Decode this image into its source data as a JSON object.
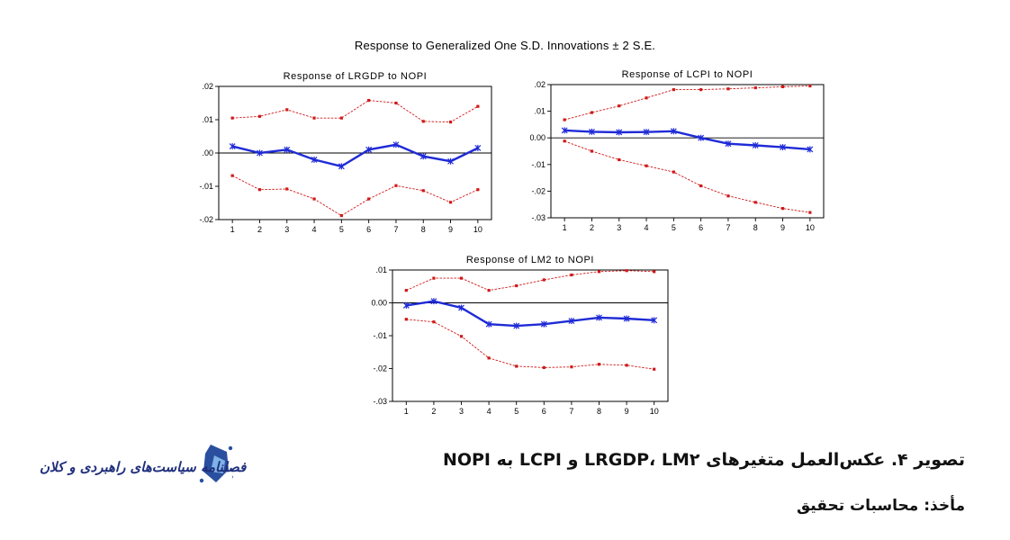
{
  "figure": {
    "title": "Response to Generalized One S.D. Innovations ± 2 S.E.",
    "caption": "تصویر ۴. عکس‌العمل متغیرهای LRGDP، LM۲ و LCPI به NOPI",
    "source": "مأخذ: محاسبات تحقیق"
  },
  "logo": {
    "text": "فصلنامه سیاست‌های راهبردی و کلان"
  },
  "colors": {
    "response": "#1f2bd6",
    "band": "#d01818",
    "axis": "#000000"
  },
  "chart_data": [
    {
      "type": "line",
      "title": "Response of LRGDP to NOPI",
      "x": [
        1,
        2,
        3,
        4,
        5,
        6,
        7,
        8,
        9,
        10
      ],
      "ylim": [
        -0.02,
        0.02
      ],
      "yticks": [
        ".02",
        ".01",
        ".00",
        "-.01",
        "-.02"
      ],
      "ytick_values": [
        0.02,
        0.01,
        0.0,
        -0.01,
        -0.02
      ],
      "zero_line": true,
      "grid": false,
      "series": [
        {
          "role": "response",
          "values": [
            0.002,
            0.0,
            0.001,
            -0.002,
            -0.004,
            0.001,
            0.0025,
            -0.001,
            -0.0025,
            0.0015
          ]
        },
        {
          "role": "upper",
          "values": [
            0.0105,
            0.011,
            0.013,
            0.0105,
            0.0105,
            0.0158,
            0.015,
            0.0095,
            0.0093,
            0.014
          ]
        },
        {
          "role": "lower",
          "values": [
            -0.0068,
            -0.011,
            -0.0108,
            -0.0138,
            -0.0188,
            -0.0138,
            -0.0098,
            -0.0113,
            -0.0148,
            -0.011
          ]
        }
      ]
    },
    {
      "type": "line",
      "title": "Response of LCPI to NOPI",
      "x": [
        1,
        2,
        3,
        4,
        5,
        6,
        7,
        8,
        9,
        10
      ],
      "ylim": [
        -0.03,
        0.02
      ],
      "yticks": [
        ".02",
        ".01",
        "0.00",
        "-.01",
        "-.02",
        "-.03"
      ],
      "ytick_values": [
        0.02,
        0.01,
        0.0,
        -0.01,
        -0.02,
        -0.03
      ],
      "zero_line": true,
      "grid": false,
      "series": [
        {
          "role": "response",
          "values": [
            0.0028,
            0.0023,
            0.0021,
            0.0022,
            0.0025,
            0.0,
            -0.0022,
            -0.0028,
            -0.0035,
            -0.0043
          ]
        },
        {
          "role": "upper",
          "values": [
            0.0068,
            0.0095,
            0.012,
            0.015,
            0.0181,
            0.0181,
            0.0184,
            0.0188,
            0.0192,
            0.0195
          ]
        },
        {
          "role": "lower",
          "values": [
            -0.0012,
            -0.005,
            -0.0082,
            -0.0105,
            -0.0128,
            -0.018,
            -0.0218,
            -0.0242,
            -0.0265,
            -0.028
          ]
        }
      ]
    },
    {
      "type": "line",
      "title": "Response of LM2 to NOPI",
      "x": [
        1,
        2,
        3,
        4,
        5,
        6,
        7,
        8,
        9,
        10
      ],
      "ylim": [
        -0.03,
        0.01
      ],
      "yticks": [
        ".01",
        "0.00",
        "-.01",
        "-.02",
        "-.03"
      ],
      "ytick_values": [
        0.01,
        0.0,
        -0.01,
        -0.02,
        -0.03
      ],
      "zero_line": true,
      "grid": false,
      "series": [
        {
          "role": "response",
          "values": [
            -0.0008,
            0.0005,
            -0.0015,
            -0.0065,
            -0.007,
            -0.0065,
            -0.0055,
            -0.0045,
            -0.0048,
            -0.0053
          ]
        },
        {
          "role": "upper",
          "values": [
            0.0038,
            0.0075,
            0.0075,
            0.0038,
            0.0052,
            0.007,
            0.0085,
            0.0095,
            0.0098,
            0.0095
          ]
        },
        {
          "role": "lower",
          "values": [
            -0.005,
            -0.0058,
            -0.0102,
            -0.0168,
            -0.0193,
            -0.0197,
            -0.0195,
            -0.0187,
            -0.019,
            -0.0202
          ]
        }
      ]
    }
  ]
}
